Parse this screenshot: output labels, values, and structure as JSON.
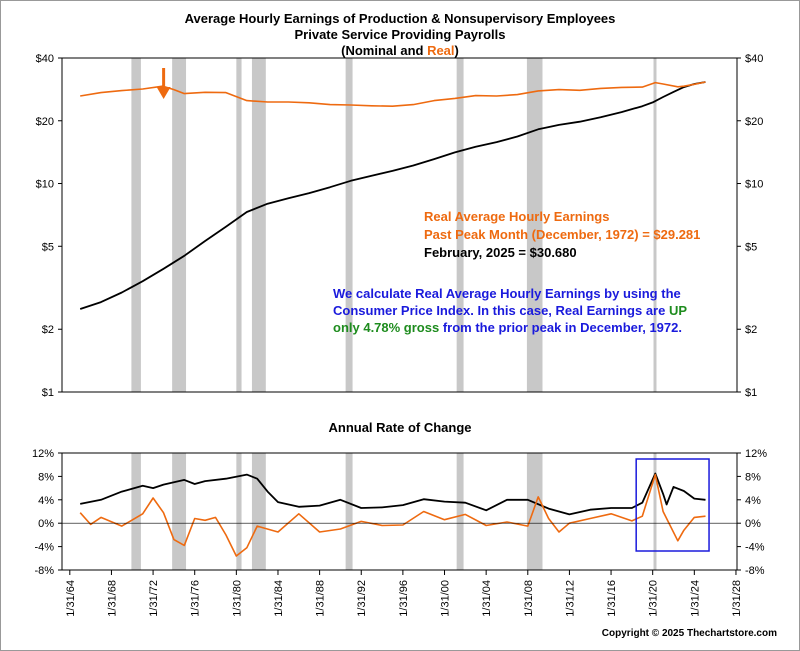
{
  "chart_data": [
    {
      "type": "line",
      "title_lines": [
        "Average Hourly Earnings of Production & Nonsupervisory Employees",
        "Private Service Providing Payrolls"
      ],
      "subtitle": {
        "open": "(Nominal and ",
        "real_word": "Real",
        "close": ")"
      },
      "y_scale": "log",
      "ylim": [
        1,
        40
      ],
      "y_ticks": [
        1,
        2,
        5,
        10,
        20,
        40
      ],
      "y_tick_labels": [
        "$1",
        "$2",
        "$5",
        "$10",
        "$20",
        "$40"
      ],
      "grid": false,
      "series": [
        {
          "color": "#000000",
          "points": [
            [
              "1/31/1965",
              2.5
            ],
            [
              "1/31/1967",
              2.7
            ],
            [
              "1/31/1969",
              3.0
            ],
            [
              "1/31/1971",
              3.4
            ],
            [
              "1/31/1973",
              3.9
            ],
            [
              "1/31/1975",
              4.5
            ],
            [
              "1/31/1977",
              5.3
            ],
            [
              "1/31/1979",
              6.2
            ],
            [
              "1/31/1981",
              7.3
            ],
            [
              "1/31/1983",
              8.0
            ],
            [
              "1/31/1985",
              8.5
            ],
            [
              "1/31/1987",
              9.0
            ],
            [
              "1/31/1989",
              9.6
            ],
            [
              "1/31/1991",
              10.3
            ],
            [
              "1/31/1993",
              10.9
            ],
            [
              "1/31/1995",
              11.5
            ],
            [
              "1/31/1997",
              12.2
            ],
            [
              "1/31/1999",
              13.1
            ],
            [
              "1/31/2001",
              14.1
            ],
            [
              "1/31/2003",
              15.0
            ],
            [
              "1/31/2005",
              15.8
            ],
            [
              "1/31/2007",
              16.8
            ],
            [
              "1/31/2009",
              18.2
            ],
            [
              "1/31/2011",
              19.1
            ],
            [
              "1/31/2013",
              19.8
            ],
            [
              "1/31/2015",
              20.8
            ],
            [
              "1/31/2017",
              22.0
            ],
            [
              "1/31/2019",
              23.5
            ],
            [
              "1/31/2020",
              24.5
            ],
            [
              "1/31/2021",
              26.0
            ],
            [
              "1/31/2022",
              27.5
            ],
            [
              "1/31/2023",
              29.0
            ],
            [
              "1/31/2024",
              30.0
            ],
            [
              "2/28/2025",
              30.68
            ]
          ]
        },
        {
          "color": "#EE6A10",
          "points": [
            [
              "1/31/1965",
              26.3
            ],
            [
              "1/31/1967",
              27.3
            ],
            [
              "1/31/1969",
              27.9
            ],
            [
              "1/31/1971",
              28.4
            ],
            [
              "12/31/1972",
              29.28
            ],
            [
              "1/31/1974",
              28.2
            ],
            [
              "1/31/1975",
              27.0
            ],
            [
              "1/31/1977",
              27.4
            ],
            [
              "1/31/1979",
              27.3
            ],
            [
              "1/31/1981",
              25.0
            ],
            [
              "1/31/1983",
              24.6
            ],
            [
              "1/31/1985",
              24.6
            ],
            [
              "1/31/1987",
              24.4
            ],
            [
              "1/31/1989",
              23.9
            ],
            [
              "1/31/1991",
              23.8
            ],
            [
              "1/31/1993",
              23.6
            ],
            [
              "1/31/1995",
              23.5
            ],
            [
              "1/31/1997",
              23.9
            ],
            [
              "1/31/1999",
              25.0
            ],
            [
              "1/31/2001",
              25.6
            ],
            [
              "1/31/2003",
              26.4
            ],
            [
              "1/31/2005",
              26.3
            ],
            [
              "1/31/2007",
              26.7
            ],
            [
              "1/31/2009",
              27.8
            ],
            [
              "1/31/2011",
              28.2
            ],
            [
              "1/31/2013",
              28.0
            ],
            [
              "1/31/2015",
              28.6
            ],
            [
              "1/31/2017",
              28.9
            ],
            [
              "1/31/2019",
              29.0
            ],
            [
              "4/30/2020",
              30.5
            ],
            [
              "1/31/2021",
              30.0
            ],
            [
              "6/30/2022",
              29.1
            ],
            [
              "1/31/2023",
              29.3
            ],
            [
              "1/31/2024",
              29.9
            ],
            [
              "2/28/2025",
              30.68
            ]
          ]
        }
      ],
      "annotations": [
        {
          "text": "Real Average Hourly Earnings",
          "color": "#EE6A10"
        },
        {
          "text": "Past Peak Month (December, 1972) = $29.281",
          "color": "#EE6A10"
        },
        {
          "text": "February, 2025 = $30.680",
          "color": "#000000"
        }
      ],
      "note": {
        "lines": [
          [
            {
              "t": "We calculate Real Average Hourly Earnings by using the",
              "c": "#1A1ADC"
            }
          ],
          [
            {
              "t": "Consumer Price Index.  In this case, Real Earnings are ",
              "c": "#1A1ADC"
            },
            {
              "t": "UP",
              "c": "#1E8C1E"
            }
          ],
          [
            {
              "t": "only 4.78% gross",
              "c": "#1E8C1E"
            },
            {
              "t": " from the prior peak in December, 1972.",
              "c": "#1A1ADC"
            }
          ]
        ]
      },
      "arrow_at": "12/31/1972",
      "recessions": [
        [
          "12/31/1969",
          "11/30/1970"
        ],
        [
          "11/30/1973",
          "3/31/1975"
        ],
        [
          "1/31/1980",
          "7/31/1980"
        ],
        [
          "7/31/1981",
          "11/30/1982"
        ],
        [
          "7/31/1990",
          "3/31/1991"
        ],
        [
          "3/31/2001",
          "11/30/2001"
        ],
        [
          "12/31/2007",
          "6/30/2009"
        ],
        [
          "2/29/2020",
          "4/30/2020"
        ]
      ]
    },
    {
      "type": "line",
      "title": "Annual Rate of Change",
      "ylim": [
        -8,
        12
      ],
      "y_ticks": [
        -8,
        -4,
        0,
        4,
        8,
        12
      ],
      "y_tick_labels": [
        "-8%",
        "-4%",
        "0%",
        "4%",
        "8%",
        "12%"
      ],
      "grid": false,
      "series": [
        {
          "color": "#000000",
          "points": [
            [
              "1/31/1965",
              3.3
            ],
            [
              "1/31/1967",
              4.0
            ],
            [
              "1/31/1969",
              5.4
            ],
            [
              "1/31/1971",
              6.4
            ],
            [
              "1/31/1972",
              6.0
            ],
            [
              "1/31/1973",
              6.6
            ],
            [
              "1/31/1975",
              7.4
            ],
            [
              "1/31/1976",
              6.7
            ],
            [
              "1/31/1977",
              7.2
            ],
            [
              "1/31/1979",
              7.6
            ],
            [
              "1/31/1981",
              8.3
            ],
            [
              "1/31/1982",
              7.6
            ],
            [
              "1/31/1983",
              5.4
            ],
            [
              "1/31/1984",
              3.6
            ],
            [
              "1/31/1986",
              2.8
            ],
            [
              "1/31/1988",
              3.0
            ],
            [
              "1/31/1990",
              4.0
            ],
            [
              "1/31/1992",
              2.6
            ],
            [
              "1/31/1994",
              2.7
            ],
            [
              "1/31/1996",
              3.1
            ],
            [
              "1/31/1998",
              4.1
            ],
            [
              "1/31/2000",
              3.7
            ],
            [
              "1/31/2002",
              3.5
            ],
            [
              "1/31/2004",
              2.2
            ],
            [
              "1/31/2006",
              4.0
            ],
            [
              "1/31/2008",
              4.0
            ],
            [
              "1/31/2010",
              2.5
            ],
            [
              "1/31/2012",
              1.5
            ],
            [
              "1/31/2014",
              2.3
            ],
            [
              "1/31/2016",
              2.6
            ],
            [
              "1/31/2018",
              2.6
            ],
            [
              "1/31/2019",
              3.5
            ],
            [
              "4/30/2020",
              8.5
            ],
            [
              "1/31/2021",
              5.0
            ],
            [
              "5/31/2021",
              3.2
            ],
            [
              "1/31/2022",
              6.2
            ],
            [
              "1/31/2023",
              5.5
            ],
            [
              "1/31/2024",
              4.2
            ],
            [
              "2/28/2025",
              4.0
            ]
          ]
        },
        {
          "color": "#EE6A10",
          "points": [
            [
              "1/31/1965",
              1.8
            ],
            [
              "1/31/1966",
              -0.2
            ],
            [
              "1/31/1967",
              1.0
            ],
            [
              "1/31/1969",
              -0.5
            ],
            [
              "1/31/1971",
              1.6
            ],
            [
              "1/31/1972",
              4.3
            ],
            [
              "1/31/1973",
              1.8
            ],
            [
              "1/31/1974",
              -2.8
            ],
            [
              "1/31/1975",
              -3.8
            ],
            [
              "1/31/1976",
              0.8
            ],
            [
              "1/31/1977",
              0.5
            ],
            [
              "1/31/1978",
              1.0
            ],
            [
              "1/31/1979",
              -2.0
            ],
            [
              "1/31/1980",
              -5.6
            ],
            [
              "1/31/1981",
              -4.2
            ],
            [
              "1/31/1982",
              -0.5
            ],
            [
              "1/31/1984",
              -1.5
            ],
            [
              "1/31/1986",
              1.6
            ],
            [
              "1/31/1988",
              -1.5
            ],
            [
              "1/31/1990",
              -1.0
            ],
            [
              "1/31/1992",
              0.3
            ],
            [
              "1/31/1994",
              -0.4
            ],
            [
              "1/31/1996",
              -0.3
            ],
            [
              "1/31/1998",
              2.0
            ],
            [
              "1/31/2000",
              0.6
            ],
            [
              "1/31/2002",
              1.5
            ],
            [
              "1/31/2004",
              -0.4
            ],
            [
              "1/31/2006",
              0.2
            ],
            [
              "1/31/2008",
              -0.5
            ],
            [
              "1/31/2009",
              4.5
            ],
            [
              "1/31/2010",
              0.8
            ],
            [
              "1/31/2011",
              -1.5
            ],
            [
              "1/31/2012",
              0.0
            ],
            [
              "1/31/2014",
              0.8
            ],
            [
              "1/31/2016",
              1.6
            ],
            [
              "1/31/2018",
              0.4
            ],
            [
              "1/31/2019",
              1.2
            ],
            [
              "4/30/2020",
              8.3
            ],
            [
              "1/31/2021",
              2.0
            ],
            [
              "6/30/2022",
              -3.0
            ],
            [
              "1/31/2023",
              -1.2
            ],
            [
              "1/31/2024",
              1.0
            ],
            [
              "2/28/2025",
              1.2
            ]
          ]
        }
      ],
      "highlight_box": [
        "6/30/2018",
        "6/30/2025"
      ],
      "recessions": [
        [
          "12/31/1969",
          "11/30/1970"
        ],
        [
          "11/30/1973",
          "3/31/1975"
        ],
        [
          "1/31/1980",
          "7/31/1980"
        ],
        [
          "7/31/1981",
          "11/30/1982"
        ],
        [
          "7/31/1990",
          "3/31/1991"
        ],
        [
          "3/31/2001",
          "11/30/2001"
        ],
        [
          "12/31/2007",
          "6/30/2009"
        ],
        [
          "2/29/2020",
          "4/30/2020"
        ]
      ]
    }
  ],
  "x_axis": {
    "ticks": [
      "1/31/1964",
      "1/31/1968",
      "1/31/1972",
      "1/31/1976",
      "1/31/1980",
      "1/31/1984",
      "1/31/1988",
      "1/31/1992",
      "1/31/1996",
      "1/31/2000",
      "1/31/2004",
      "1/31/2008",
      "1/31/2012",
      "1/31/2016",
      "1/31/2020",
      "1/31/2024",
      "1/31/2028"
    ],
    "tick_labels": [
      "1/31/64",
      "1/31/68",
      "1/31/72",
      "1/31/76",
      "1/31/80",
      "1/31/84",
      "1/31/88",
      "1/31/92",
      "1/31/96",
      "1/31/00",
      "1/31/04",
      "1/31/08",
      "1/31/12",
      "1/31/16",
      "1/31/20",
      "1/31/24",
      "1/31/28"
    ]
  },
  "copyright": "Copyright © 2025 Thechartstore.com",
  "colors": {
    "plot_bg": "#FFFFFF",
    "recession": "#C8C8C8",
    "real": "#EE6A10",
    "nominal": "#000000",
    "box": "#1A1ADC"
  }
}
